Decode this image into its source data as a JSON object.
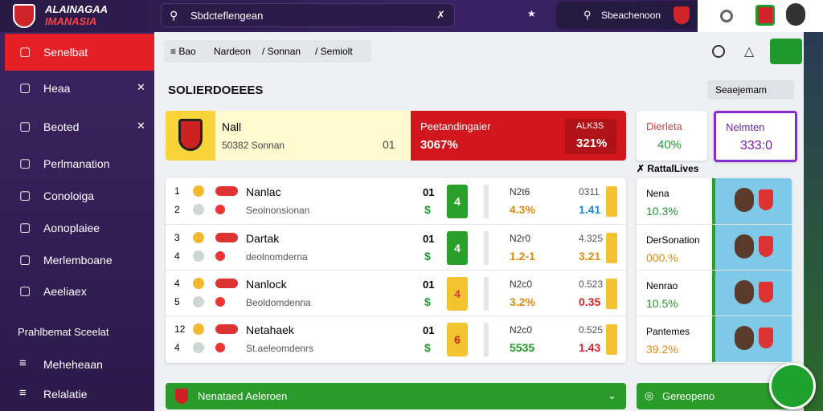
{
  "header": {
    "logo_line1": "ALAINAGAA",
    "logo_line2": "IMANASIA",
    "search": "Sbdcteflengean",
    "search2": "Sbeachenoon"
  },
  "sidebar": {
    "items": [
      "Senelbat",
      "Heaa",
      "Beoted",
      "Perlmanation",
      "Conoloiga",
      "Aonoplaiee",
      "Merlemboane",
      "Aeeliaex"
    ],
    "section": "Prahlbemat Sceelat",
    "bottom_items": [
      "Meheheaan",
      "Relalatie"
    ]
  },
  "breadcrumbs": [
    "Bao",
    "Nardeon",
    "Sonnan",
    "Semiolt"
  ],
  "section_title": "SOLIERDOEEES",
  "section_button": "Seaejemam",
  "cards": {
    "featured": {
      "name": "Nall",
      "sub": "50382 Sonnan",
      "score": "01"
    },
    "stat": {
      "label": "Peetandingaier",
      "value": "3067%",
      "tag": "ALK3S",
      "tag_value": "321%"
    },
    "mini1": {
      "label": "Dierleta",
      "value": "40%"
    },
    "mini2": {
      "label": "Nelmten",
      "value": "333:0"
    }
  },
  "live_title": "RattalLives",
  "matches": [
    {
      "nums": [
        "1",
        "2"
      ],
      "name": "Nanlac",
      "sub": "Seolnonsionan",
      "score": "01",
      "currency": "$",
      "badge": "4",
      "label1": "N2t6",
      "val1": "4.3%",
      "label2": "0311",
      "val2": "1.41"
    },
    {
      "nums": [
        "3",
        "4"
      ],
      "name": "Dartak",
      "sub": "deolnomderna",
      "score": "01",
      "currency": "$",
      "badge": "4",
      "label1": "N2r0",
      "val1": "1.2-1",
      "label2": "4.325",
      "val2": "3.21"
    },
    {
      "nums": [
        "4",
        "5"
      ],
      "name": "Nanlock",
      "sub": "Beoldomdenna",
      "score": "01",
      "currency": "$",
      "badge": "4",
      "label1": "N2c0",
      "val1": "3.2%",
      "label2": "0.523",
      "val2": "0.35"
    },
    {
      "nums": [
        "12",
        "4"
      ],
      "name": "Netahaek",
      "sub": "St.aeleomdenrs",
      "score": "01",
      "currency": "$",
      "badge": "6",
      "label1": "N2c0",
      "val1": "5535",
      "label2": "0.525",
      "val2": "1.43"
    }
  ],
  "live": [
    {
      "name": "Nena",
      "value": "10.3%"
    },
    {
      "name": "DerSonation",
      "value": "000.%"
    },
    {
      "name": "Nenrao",
      "value": "10.5%"
    },
    {
      "name": "Pantemes",
      "value": "39.2%"
    }
  ],
  "footer": {
    "left": "Nenataed Aeleroen",
    "right": "Gereopeno"
  }
}
